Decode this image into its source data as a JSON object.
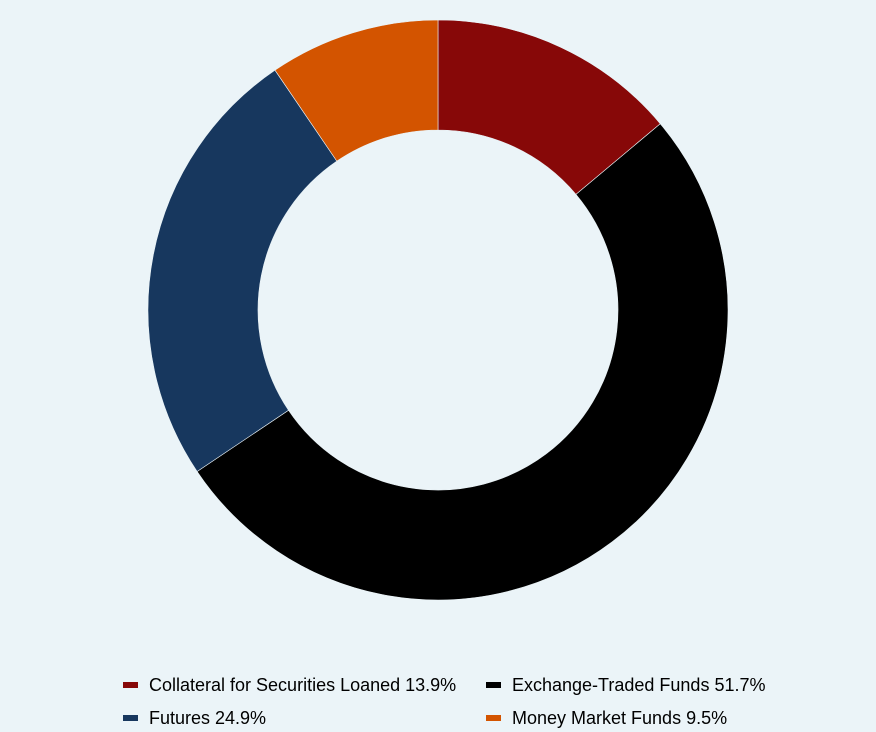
{
  "chart_data": {
    "type": "pie",
    "variant": "donut",
    "start_angle": "12 o'clock",
    "direction": "clockwise",
    "legend_position": "bottom",
    "slices": [
      {
        "label": "Collateral for Securities Loaned 13.9%",
        "value": 13.9,
        "color": "#870808"
      },
      {
        "label": "Exchange-Traded Funds 51.7%",
        "value": 51.7,
        "color": "#000000"
      },
      {
        "label": "Futures 24.9%",
        "value": 24.9,
        "color": "#17375e"
      },
      {
        "label": "Money Market Funds 9.5%",
        "value": 9.5,
        "color": "#d35400"
      }
    ]
  }
}
